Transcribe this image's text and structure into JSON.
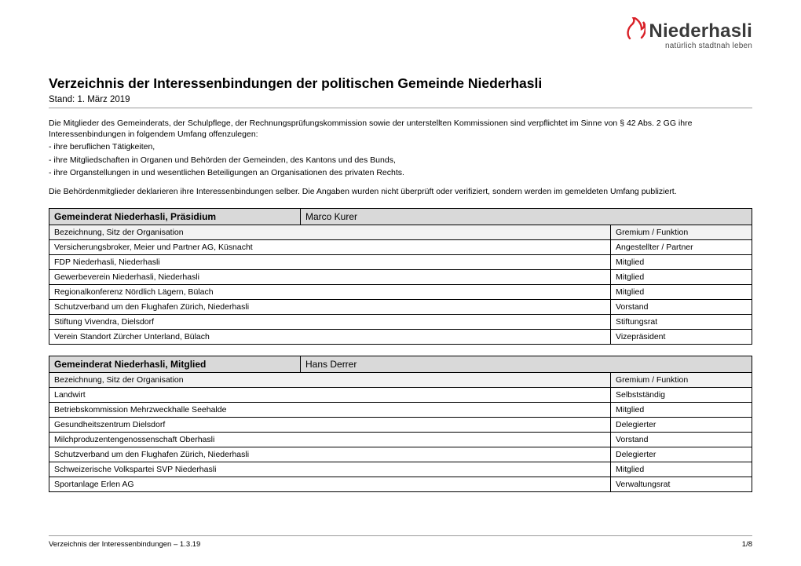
{
  "logo": {
    "wordmark": "Niederhasli",
    "tagline": "natürlich stadtnah leben",
    "icon_color": "#d92027"
  },
  "title": "Verzeichnis der Interessenbindungen der politischen Gemeinde Niederhasli",
  "stand": "Stand: 1. März 2019",
  "intro": {
    "p1": "Die Mitglieder des Gemeinderats, der Schulpflege, der Rechnungsprüfungskommission sowie der unterstellten Kommissionen sind verpflichtet im Sinne von § 42 Abs. 2 GG ihre Interessenbindungen in folgendem Umfang offenzulegen:",
    "b1": "- ihre beruflichen Tätigkeiten,",
    "b2": "- ihre Mitgliedschaften in Organen und Behörden der Gemeinden, des Kantons und des Bunds,",
    "b3": "- ihre Organstellungen in und wesentlichen Beteiligungen an Organisationen des privaten Rechts.",
    "p2": "Die Behördenmitglieder deklarieren ihre Interessenbindungen selber. Die Angaben wurden nicht überprüft oder verifiziert, sondern werden im gemeldeten Umfang publiziert."
  },
  "table_labels": {
    "col_org": "Bezeichnung, Sitz der Organisation",
    "col_func": "Gremium / Funktion"
  },
  "sections": [
    {
      "role": "Gemeinderat Niederhasli, Präsidium",
      "name": "Marco Kurer",
      "rows": [
        {
          "org": "Versicherungsbroker, Meier und Partner AG, Küsnacht",
          "func": "Angestellter / Partner"
        },
        {
          "org": "FDP Niederhasli, Niederhasli",
          "func": "Mitglied"
        },
        {
          "org": "Gewerbeverein Niederhasli, Niederhasli",
          "func": "Mitglied"
        },
        {
          "org": "Regionalkonferenz Nördlich Lägern, Bülach",
          "func": "Mitglied"
        },
        {
          "org": "Schutzverband um den Flughafen Zürich, Niederhasli",
          "func": "Vorstand"
        },
        {
          "org": "Stiftung Vivendra, Dielsdorf",
          "func": "Stiftungsrat"
        },
        {
          "org": "Verein Standort Zürcher Unterland, Bülach",
          "func": "Vizepräsident"
        }
      ]
    },
    {
      "role": "Gemeinderat Niederhasli, Mitglied",
      "name": "Hans Derrer",
      "rows": [
        {
          "org": "Landwirt",
          "func": "Selbstständig"
        },
        {
          "org": "Betriebskommission Mehrzweckhalle Seehalde",
          "func": "Mitglied"
        },
        {
          "org": "Gesundheitszentrum Dielsdorf",
          "func": "Delegierter"
        },
        {
          "org": "Milchproduzentengenossenschaft Oberhasli",
          "func": "Vorstand"
        },
        {
          "org": "Schutzverband um den Flughafen Zürich, Niederhasli",
          "func": "Delegierter"
        },
        {
          "org": "Schweizerische Volkspartei SVP Niederhasli",
          "func": "Mitglied"
        },
        {
          "org": "Sportanlage Erlen AG",
          "func": "Verwaltungsrat"
        }
      ]
    }
  ],
  "footer": {
    "left": "Verzeichnis der Interessenbindungen – 1.3.19",
    "right": "1/8"
  }
}
